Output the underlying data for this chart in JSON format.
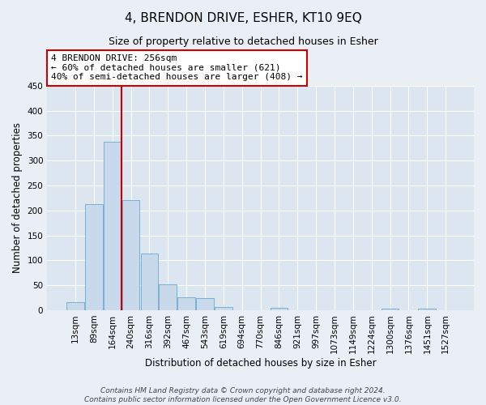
{
  "title": "4, BRENDON DRIVE, ESHER, KT10 9EQ",
  "subtitle": "Size of property relative to detached houses in Esher",
  "xlabel": "Distribution of detached houses by size in Esher",
  "ylabel": "Number of detached properties",
  "bar_labels": [
    "13sqm",
    "89sqm",
    "164sqm",
    "240sqm",
    "316sqm",
    "392sqm",
    "467sqm",
    "543sqm",
    "619sqm",
    "694sqm",
    "770sqm",
    "846sqm",
    "921sqm",
    "997sqm",
    "1073sqm",
    "1149sqm",
    "1224sqm",
    "1300sqm",
    "1376sqm",
    "1451sqm",
    "1527sqm"
  ],
  "bar_values": [
    16,
    213,
    338,
    220,
    113,
    51,
    26,
    24,
    7,
    0,
    0,
    5,
    0,
    0,
    0,
    0,
    0,
    3,
    0,
    3,
    0
  ],
  "bar_color": "#c9d9ec",
  "bar_edgecolor": "#7ab0d4",
  "vline_x": 2.5,
  "vline_color": "#cc0000",
  "annotation_text": "4 BRENDON DRIVE: 256sqm\n← 60% of detached houses are smaller (621)\n40% of semi-detached houses are larger (408) →",
  "annotation_box_edgecolor": "#cc0000",
  "annotation_box_facecolor": "#ffffff",
  "ylim": [
    0,
    450
  ],
  "yticks": [
    0,
    50,
    100,
    150,
    200,
    250,
    300,
    350,
    400,
    450
  ],
  "footer_line1": "Contains HM Land Registry data © Crown copyright and database right 2024.",
  "footer_line2": "Contains public sector information licensed under the Open Government Licence v3.0.",
  "bg_color": "#eaeff6",
  "plot_bg_color": "#dce6f0",
  "title_fontsize": 11,
  "subtitle_fontsize": 9,
  "axis_label_fontsize": 8.5,
  "tick_fontsize": 7.5,
  "footer_fontsize": 6.5
}
